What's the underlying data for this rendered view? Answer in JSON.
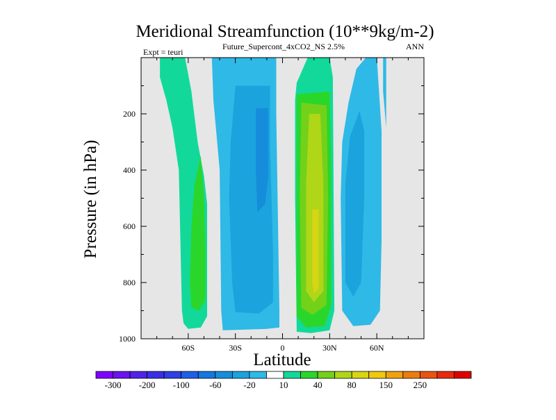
{
  "chart_data": {
    "type": "heatmap",
    "title": "Meridional Streamfunction (10**9kg/m-2)",
    "subtitle": "Future_Supercont_4xCO2_NS 2.5%",
    "left_label": "Expt = teuri",
    "right_label": "ANN",
    "xlabel": "Latitude",
    "ylabel": "Pressure (in hPa)",
    "xlim": [
      -90,
      90
    ],
    "ylim": [
      1000,
      0
    ],
    "xticks": [
      {
        "value": -60,
        "label": "60S"
      },
      {
        "value": -30,
        "label": "30S"
      },
      {
        "value": 0,
        "label": "0"
      },
      {
        "value": 30,
        "label": "30N"
      },
      {
        "value": 60,
        "label": "60N"
      }
    ],
    "yticks": [
      {
        "value": 200,
        "label": "200"
      },
      {
        "value": 400,
        "label": "400"
      },
      {
        "value": 600,
        "label": "600"
      },
      {
        "value": 800,
        "label": "800"
      },
      {
        "value": 1000,
        "label": "1000"
      }
    ],
    "missing_color": "#e6e6e6",
    "colorbar": {
      "colors": [
        "#8000ff",
        "#6a12f0",
        "#5022e8",
        "#3a2fe6",
        "#2f40e4",
        "#1f5fe8",
        "#1577e0",
        "#168dda",
        "#1ba3de",
        "#2fb9e6",
        "#ffffff",
        "#12d99a",
        "#2bd62b",
        "#73d11a",
        "#b0d618",
        "#d8d514",
        "#f0c80e",
        "#f0a20e",
        "#eb7d10",
        "#e85510",
        "#e82a0e",
        "#e00000"
      ],
      "labels": [
        "-300",
        "-200",
        "-100",
        "-60",
        "-20",
        "10",
        "40",
        "80",
        "150",
        "250"
      ]
    },
    "contours": [
      {
        "name": "band-60s-outer",
        "level": "10",
        "color": "#12d99a",
        "points": [
          [
            -78,
            0
          ],
          [
            -62,
            0
          ],
          [
            -58,
            120
          ],
          [
            -54,
            300
          ],
          [
            -50,
            420
          ],
          [
            -48,
            520
          ],
          [
            -48,
            800
          ],
          [
            -48,
            920
          ],
          [
            -52,
            960
          ],
          [
            -60,
            965
          ],
          [
            -63,
            945
          ],
          [
            -64,
            900
          ],
          [
            -66,
            400
          ],
          [
            -70,
            250
          ],
          [
            -74,
            150
          ],
          [
            -78,
            70
          ]
        ]
      },
      {
        "name": "band-60s-inner",
        "level": "40",
        "color": "#2bd62b",
        "points": [
          [
            -52,
            350
          ],
          [
            -50,
            500
          ],
          [
            -49,
            700
          ],
          [
            -49,
            860
          ],
          [
            -53,
            900
          ],
          [
            -58,
            890
          ],
          [
            -59,
            800
          ],
          [
            -58,
            600
          ],
          [
            -56,
            450
          ]
        ]
      },
      {
        "name": "band-30s-outer",
        "level": "-20",
        "color": "#2fb9e6",
        "points": [
          [
            -45,
            0
          ],
          [
            -4,
            0
          ],
          [
            -4,
            200
          ],
          [
            -2,
            900
          ],
          [
            -2,
            960
          ],
          [
            -10,
            965
          ],
          [
            -38,
            970
          ],
          [
            -39,
            900
          ],
          [
            -40,
            400
          ],
          [
            -44,
            150
          ]
        ]
      },
      {
        "name": "band-30s-mid",
        "level": "-60",
        "color": "#1ba3de",
        "points": [
          [
            -30,
            100
          ],
          [
            -8,
            100
          ],
          [
            -8,
            300
          ],
          [
            -6,
            700
          ],
          [
            -6,
            870
          ],
          [
            -15,
            910
          ],
          [
            -30,
            905
          ],
          [
            -32,
            800
          ],
          [
            -34,
            500
          ],
          [
            -33,
            300
          ]
        ]
      },
      {
        "name": "band-30s-inner",
        "level": "-100",
        "color": "#168dda",
        "points": [
          [
            -17,
            180
          ],
          [
            -9,
            180
          ],
          [
            -9,
            420
          ],
          [
            -11,
            520
          ],
          [
            -16,
            550
          ],
          [
            -17,
            400
          ]
        ]
      },
      {
        "name": "band-30n-outer",
        "level": "10",
        "color": "#12d99a",
        "points": [
          [
            9,
            90
          ],
          [
            16,
            0
          ],
          [
            30,
            0
          ],
          [
            32,
            70
          ],
          [
            33,
            900
          ],
          [
            30,
            970
          ],
          [
            18,
            980
          ],
          [
            9,
            975
          ],
          [
            8,
            500
          ],
          [
            8,
            150
          ]
        ]
      },
      {
        "name": "band-30n-l2",
        "level": "40",
        "color": "#2bd62b",
        "points": [
          [
            9,
            130
          ],
          [
            30,
            120
          ],
          [
            31,
            400
          ],
          [
            31,
            880
          ],
          [
            27,
            955
          ],
          [
            15,
            960
          ],
          [
            9,
            920
          ],
          [
            9,
            400
          ]
        ]
      },
      {
        "name": "band-30n-l3",
        "level": "80",
        "color": "#73d11a",
        "points": [
          [
            12,
            160
          ],
          [
            28,
            170
          ],
          [
            29,
            500
          ],
          [
            28,
            880
          ],
          [
            19,
            915
          ],
          [
            12,
            890
          ],
          [
            11,
            500
          ]
        ]
      },
      {
        "name": "band-30n-l4",
        "level": "150",
        "color": "#b0d618",
        "points": [
          [
            17,
            200
          ],
          [
            24,
            200
          ],
          [
            26,
            450
          ],
          [
            26,
            830
          ],
          [
            20,
            870
          ],
          [
            15,
            830
          ],
          [
            15,
            450
          ]
        ]
      },
      {
        "name": "band-30n-l5",
        "level": "250",
        "color": "#d8d514",
        "points": [
          [
            19,
            540
          ],
          [
            23,
            540
          ],
          [
            23,
            820
          ],
          [
            20,
            840
          ],
          [
            19,
            800
          ]
        ]
      },
      {
        "name": "band-60n-outer",
        "level": "-20",
        "color": "#2fb9e6",
        "points": [
          [
            38,
            300
          ],
          [
            42,
            160
          ],
          [
            47,
            40
          ],
          [
            53,
            0
          ],
          [
            60,
            0
          ],
          [
            63,
            260
          ],
          [
            63,
            650
          ],
          [
            62,
            900
          ],
          [
            56,
            950
          ],
          [
            45,
            955
          ],
          [
            38,
            900
          ],
          [
            37,
            500
          ]
        ]
      },
      {
        "name": "band-60n-inner",
        "level": "-60",
        "color": "#1ba3de",
        "points": [
          [
            40,
            450
          ],
          [
            43,
            280
          ],
          [
            49,
            190
          ],
          [
            52,
            260
          ],
          [
            52,
            500
          ],
          [
            50,
            800
          ],
          [
            45,
            850
          ],
          [
            40,
            800
          ]
        ]
      },
      {
        "name": "sliver-60n",
        "level": "-20",
        "color": "#2fb9e6",
        "points": [
          [
            64,
            0
          ],
          [
            66,
            0
          ],
          [
            66,
            250
          ],
          [
            64,
            120
          ]
        ]
      }
    ]
  }
}
